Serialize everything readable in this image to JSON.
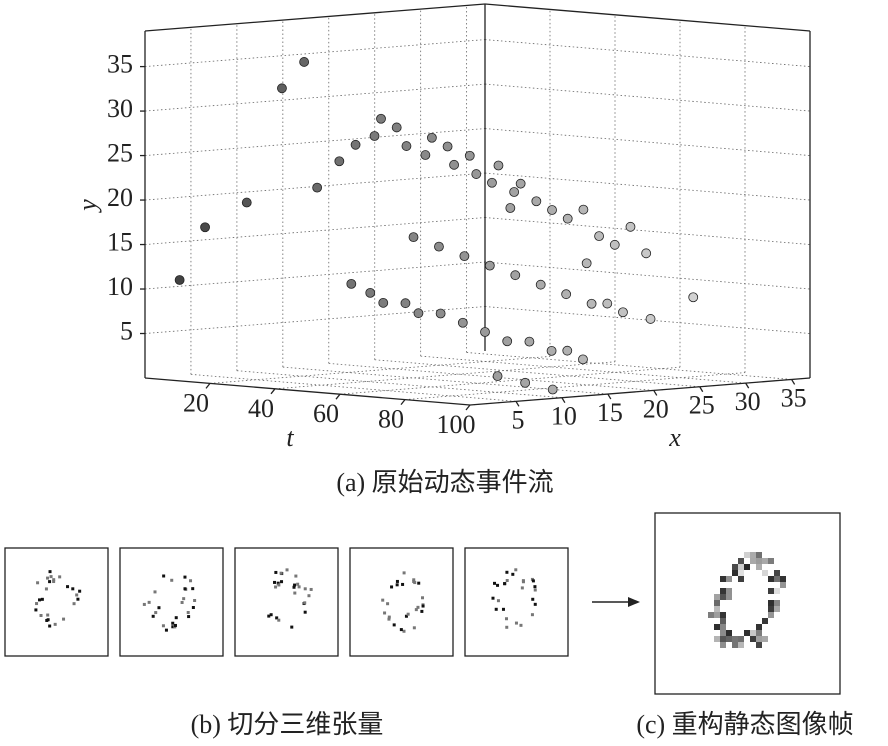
{
  "chart_data": {
    "type": "scatter3d",
    "caption": "(a) 原始动态事件流",
    "t_label": "t",
    "x_label": "x",
    "y_label": "y",
    "tlim": [
      0,
      100
    ],
    "xlim": [
      0,
      37
    ],
    "ylim": [
      0,
      39
    ],
    "tticks": [
      20,
      40,
      60,
      80,
      100
    ],
    "xticks": [
      5,
      10,
      15,
      20,
      25,
      30,
      35
    ],
    "yticks": [
      5,
      10,
      15,
      20,
      25,
      30,
      35
    ],
    "grid": true,
    "t": [
      5,
      10,
      20,
      28,
      32,
      36,
      40,
      45,
      48,
      50,
      52,
      55,
      58,
      60,
      62,
      64,
      66,
      68,
      70,
      72,
      74,
      76,
      78,
      80,
      82,
      84,
      86,
      88,
      90,
      92,
      55,
      58,
      62,
      66,
      70,
      74,
      78,
      82,
      86,
      90,
      94,
      96,
      98,
      60,
      65,
      70,
      75,
      80,
      85,
      90,
      95,
      97,
      99,
      100,
      100,
      100,
      99,
      98,
      70,
      85
    ],
    "x": [
      2,
      3,
      4,
      5,
      6,
      6,
      7,
      7,
      8,
      8,
      9,
      9,
      10,
      10,
      11,
      11,
      12,
      12,
      13,
      13,
      14,
      14,
      15,
      16,
      17,
      18,
      19,
      20,
      21,
      22,
      3,
      4,
      4,
      5,
      5,
      6,
      7,
      8,
      9,
      10,
      11,
      12,
      13,
      8,
      9,
      10,
      11,
      12,
      13,
      14,
      15,
      16,
      17,
      3,
      6,
      9,
      20,
      25,
      15,
      18
    ],
    "y": [
      11,
      17,
      20,
      33,
      36,
      22,
      25,
      27,
      28,
      30,
      29,
      27,
      26,
      28,
      27,
      25,
      26,
      24,
      23,
      25,
      22,
      23,
      21,
      20,
      19,
      20,
      17,
      16,
      18,
      15,
      12,
      11,
      10,
      10,
      9,
      9,
      8,
      7,
      6,
      6,
      5,
      5,
      4,
      17,
      16,
      15,
      14,
      13,
      12,
      11,
      10,
      10,
      9,
      3,
      2,
      1,
      8,
      10,
      20,
      14
    ]
  },
  "figure": {
    "caption_b": "(b) 切分三维张量",
    "caption_c": "(c) 重构静态图像帧"
  }
}
